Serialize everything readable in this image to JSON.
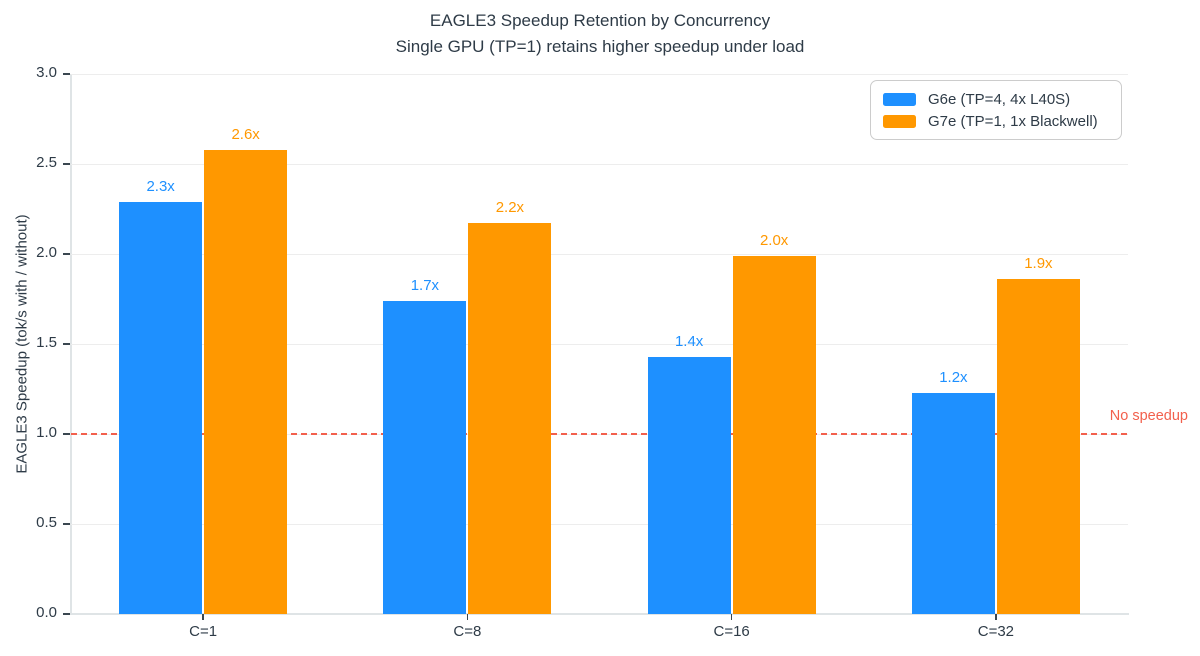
{
  "title": "EAGLE3 Speedup Retention by Concurrency",
  "subtitle": "Single GPU (TP=1) retains higher speedup under load",
  "chart_data": {
    "type": "bar",
    "title": "EAGLE3 Speedup Retention by Concurrency",
    "subtitle": "Single GPU (TP=1) retains higher speedup under load",
    "ylabel": "EAGLE3 Speedup (tok/s with / without)",
    "xlabel": "",
    "categories": [
      "C=1",
      "C=8",
      "C=16",
      "C=32"
    ],
    "series": [
      {
        "name": "G6e (TP=4, 4x L40S)",
        "color": "#1e90ff",
        "values": [
          2.29,
          1.74,
          1.43,
          1.23
        ],
        "value_labels": [
          "2.3x",
          "1.7x",
          "1.4x",
          "1.2x"
        ]
      },
      {
        "name": "G7e (TP=1, 1x Blackwell)",
        "color": "#ff9800",
        "values": [
          2.58,
          2.17,
          1.99,
          1.86
        ],
        "value_labels": [
          "2.6x",
          "2.2x",
          "2.0x",
          "1.9x"
        ]
      }
    ],
    "ylim": [
      0,
      3
    ],
    "ytick_labels": [
      "0.0",
      "0.5",
      "1.0",
      "1.5",
      "2.0",
      "2.5",
      "3.0"
    ],
    "grid": true,
    "legend_position": "upper right",
    "reference_line": {
      "y": 1.0,
      "label": "No speedup",
      "color": "#f2604d",
      "style": "dashed"
    }
  },
  "colors": {
    "text": "#2e3b47",
    "grid": "#ededed",
    "spine": "#dfe4e6",
    "series_blue": "#1e90ff",
    "series_orange": "#ff9800",
    "reference": "#f2604d"
  }
}
